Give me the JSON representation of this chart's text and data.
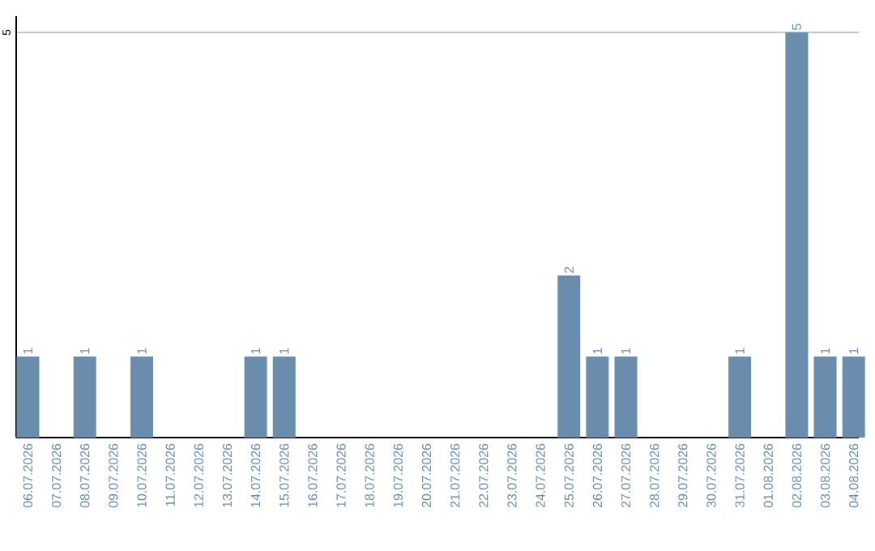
{
  "chart_data": {
    "type": "bar",
    "categories": [
      "06.07.2026",
      "07.07.2026",
      "08.07.2026",
      "09.07.2026",
      "10.07.2026",
      "11.07.2026",
      "12.07.2026",
      "13.07.2026",
      "14.07.2026",
      "15.07.2026",
      "16.07.2026",
      "17.07.2026",
      "18.07.2026",
      "19.07.2026",
      "20.07.2026",
      "21.07.2026",
      "22.07.2026",
      "23.07.2026",
      "24.07.2026",
      "25.07.2026",
      "26.07.2026",
      "27.07.2026",
      "28.07.2026",
      "29.07.2026",
      "30.07.2026",
      "31.07.2026",
      "01.08.2026",
      "02.08.2026",
      "03.08.2026",
      "04.08.2026"
    ],
    "values": [
      1,
      0,
      1,
      0,
      1,
      0,
      0,
      0,
      1,
      1,
      0,
      0,
      0,
      0,
      0,
      0,
      0,
      0,
      0,
      2,
      1,
      1,
      0,
      0,
      0,
      1,
      0,
      5,
      1,
      1
    ],
    "value_labels": [
      "1",
      null,
      "1",
      null,
      "1",
      null,
      null,
      null,
      "1",
      "1",
      null,
      null,
      null,
      null,
      null,
      null,
      null,
      null,
      null,
      "2",
      "1",
      "1",
      null,
      null,
      null,
      "1",
      null,
      "5",
      "1",
      "1"
    ],
    "color": "#6a8cad",
    "ylim": [
      0,
      5.2
    ],
    "yticks": [
      5
    ],
    "grid": "y"
  }
}
